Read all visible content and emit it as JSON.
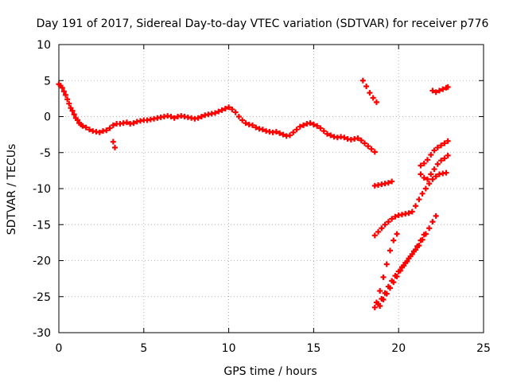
{
  "chart_data": {
    "type": "scatter",
    "title": "Day 191 of 2017, Sidereal Day-to-day VTEC variation (SDTVAR) for receiver p776",
    "xlabel": "GPS time / hours",
    "ylabel": "SDTVAR / TECUs",
    "xlim": [
      0,
      25
    ],
    "ylim": [
      -30,
      10
    ],
    "xticks": [
      0,
      5,
      10,
      15,
      20,
      25
    ],
    "yticks": [
      -30,
      -25,
      -20,
      -15,
      -10,
      -5,
      0,
      5,
      10
    ],
    "grid": true,
    "series_color": "#ff0000",
    "marker": "+",
    "series": [
      {
        "points": [
          [
            0.0,
            4.5
          ],
          [
            0.1,
            4.3
          ],
          [
            0.2,
            4.0
          ],
          [
            0.3,
            3.5
          ],
          [
            0.4,
            3.0
          ],
          [
            0.5,
            2.4
          ],
          [
            0.6,
            1.8
          ],
          [
            0.7,
            1.2
          ],
          [
            0.8,
            0.8
          ],
          [
            0.9,
            0.3
          ],
          [
            1.0,
            -0.2
          ],
          [
            1.1,
            -0.5
          ],
          [
            1.2,
            -0.9
          ],
          [
            1.3,
            -1.1
          ],
          [
            1.4,
            -1.3
          ],
          [
            1.6,
            -1.5
          ],
          [
            1.8,
            -1.8
          ],
          [
            2.0,
            -2.0
          ],
          [
            2.2,
            -2.1
          ],
          [
            2.4,
            -2.2
          ],
          [
            2.6,
            -2.0
          ],
          [
            2.8,
            -1.9
          ],
          [
            3.0,
            -1.6
          ],
          [
            3.2,
            -1.2
          ],
          [
            3.4,
            -1.0
          ],
          [
            3.6,
            -1.0
          ],
          [
            3.8,
            -0.9
          ],
          [
            4.0,
            -0.8
          ],
          [
            4.2,
            -1.0
          ],
          [
            4.4,
            -0.9
          ],
          [
            4.6,
            -0.7
          ],
          [
            4.8,
            -0.6
          ],
          [
            5.0,
            -0.5
          ],
          [
            5.2,
            -0.5
          ],
          [
            5.4,
            -0.4
          ],
          [
            5.6,
            -0.3
          ],
          [
            5.8,
            -0.2
          ],
          [
            6.0,
            -0.1
          ],
          [
            6.2,
            0.0
          ],
          [
            6.4,
            0.1
          ],
          [
            6.6,
            0.0
          ],
          [
            6.8,
            -0.2
          ],
          [
            7.0,
            0.0
          ],
          [
            7.2,
            0.1
          ],
          [
            7.4,
            0.0
          ],
          [
            7.6,
            -0.1
          ],
          [
            7.8,
            -0.2
          ],
          [
            8.0,
            -0.3
          ],
          [
            8.2,
            -0.2
          ],
          [
            8.4,
            0.0
          ],
          [
            8.6,
            0.2
          ],
          [
            8.8,
            0.3
          ],
          [
            9.0,
            0.4
          ],
          [
            9.2,
            0.5
          ],
          [
            9.4,
            0.7
          ],
          [
            9.6,
            0.9
          ],
          [
            9.8,
            1.1
          ],
          [
            10.0,
            1.3
          ],
          [
            10.2,
            1.0
          ],
          [
            10.4,
            0.6
          ],
          [
            10.6,
            0.0
          ],
          [
            10.8,
            -0.5
          ],
          [
            11.0,
            -0.9
          ],
          [
            11.2,
            -1.1
          ],
          [
            11.4,
            -1.2
          ],
          [
            11.6,
            -1.5
          ],
          [
            11.8,
            -1.7
          ],
          [
            12.0,
            -1.8
          ],
          [
            12.2,
            -2.0
          ],
          [
            12.4,
            -2.1
          ],
          [
            12.6,
            -2.2
          ],
          [
            12.8,
            -2.1
          ],
          [
            13.0,
            -2.3
          ],
          [
            13.2,
            -2.5
          ],
          [
            13.4,
            -2.7
          ],
          [
            13.6,
            -2.6
          ],
          [
            13.8,
            -2.2
          ],
          [
            14.0,
            -1.8
          ],
          [
            14.2,
            -1.4
          ],
          [
            14.4,
            -1.2
          ],
          [
            14.6,
            -1.0
          ],
          [
            14.8,
            -0.9
          ],
          [
            15.0,
            -1.1
          ],
          [
            15.2,
            -1.3
          ],
          [
            15.4,
            -1.6
          ],
          [
            15.6,
            -2.0
          ],
          [
            15.8,
            -2.4
          ],
          [
            16.0,
            -2.6
          ],
          [
            16.2,
            -2.8
          ],
          [
            16.4,
            -2.9
          ],
          [
            16.6,
            -2.8
          ],
          [
            16.8,
            -2.9
          ],
          [
            17.0,
            -3.1
          ],
          [
            17.2,
            -3.2
          ],
          [
            17.4,
            -3.1
          ],
          [
            17.6,
            -3.0
          ],
          [
            17.8,
            -3.3
          ],
          [
            18.0,
            -3.7
          ],
          [
            18.2,
            -4.1
          ],
          [
            18.4,
            -4.5
          ],
          [
            18.6,
            -4.9
          ],
          [
            3.2,
            -3.5
          ],
          [
            3.3,
            -4.3
          ],
          [
            17.9,
            5.0
          ],
          [
            18.1,
            4.2
          ],
          [
            18.3,
            3.3
          ],
          [
            18.5,
            2.6
          ],
          [
            18.7,
            2.0
          ],
          [
            18.6,
            -9.6
          ],
          [
            18.8,
            -9.5
          ],
          [
            19.0,
            -9.4
          ],
          [
            19.2,
            -9.3
          ],
          [
            19.4,
            -9.2
          ],
          [
            19.6,
            -9.0
          ],
          [
            18.6,
            -16.5
          ],
          [
            18.8,
            -16.0
          ],
          [
            19.0,
            -15.5
          ],
          [
            19.2,
            -15.0
          ],
          [
            19.4,
            -14.6
          ],
          [
            19.6,
            -14.2
          ],
          [
            19.8,
            -13.9
          ],
          [
            20.0,
            -13.7
          ],
          [
            20.2,
            -13.6
          ],
          [
            20.4,
            -13.5
          ],
          [
            20.6,
            -13.4
          ],
          [
            20.8,
            -13.2
          ],
          [
            21.0,
            -12.4
          ],
          [
            21.2,
            -11.5
          ],
          [
            21.4,
            -10.7
          ],
          [
            21.6,
            -10.0
          ],
          [
            21.8,
            -9.3
          ],
          [
            22.0,
            -8.7
          ],
          [
            22.2,
            -8.3
          ],
          [
            22.4,
            -8.0
          ],
          [
            22.6,
            -7.9
          ],
          [
            22.8,
            -7.8
          ],
          [
            18.6,
            -26.5
          ],
          [
            18.8,
            -26.0
          ],
          [
            19.0,
            -25.3
          ],
          [
            19.2,
            -24.5
          ],
          [
            19.4,
            -23.6
          ],
          [
            19.6,
            -22.8
          ],
          [
            19.8,
            -22.1
          ],
          [
            20.0,
            -21.5
          ],
          [
            20.2,
            -20.9
          ],
          [
            20.4,
            -20.3
          ],
          [
            20.6,
            -19.7
          ],
          [
            20.8,
            -19.1
          ],
          [
            21.0,
            -18.5
          ],
          [
            21.2,
            -17.9
          ],
          [
            21.4,
            -17.1
          ],
          [
            21.6,
            -16.3
          ],
          [
            21.8,
            -15.5
          ],
          [
            22.0,
            -14.6
          ],
          [
            22.2,
            -13.8
          ],
          [
            18.7,
            -25.8
          ],
          [
            18.9,
            -24.2
          ],
          [
            19.1,
            -22.3
          ],
          [
            19.3,
            -20.5
          ],
          [
            19.5,
            -18.6
          ],
          [
            19.7,
            -17.2
          ],
          [
            19.9,
            -16.3
          ],
          [
            18.9,
            -26.3
          ],
          [
            19.1,
            -25.4
          ],
          [
            19.3,
            -24.6
          ],
          [
            19.5,
            -23.8
          ],
          [
            19.7,
            -23.0
          ],
          [
            19.9,
            -22.2
          ],
          [
            20.1,
            -21.4
          ],
          [
            20.3,
            -20.7
          ],
          [
            20.5,
            -20.1
          ],
          [
            20.7,
            -19.4
          ],
          [
            20.9,
            -18.7
          ],
          [
            21.1,
            -18.0
          ],
          [
            21.3,
            -17.2
          ],
          [
            21.5,
            -16.4
          ],
          [
            21.3,
            -8.0
          ],
          [
            21.5,
            -8.5
          ],
          [
            21.7,
            -8.7
          ],
          [
            21.9,
            -8.0
          ],
          [
            22.1,
            -7.3
          ],
          [
            22.3,
            -6.6
          ],
          [
            22.5,
            -6.1
          ],
          [
            22.7,
            -5.8
          ],
          [
            22.9,
            -5.4
          ],
          [
            21.3,
            -6.8
          ],
          [
            21.5,
            -6.5
          ],
          [
            21.7,
            -6.0
          ],
          [
            21.9,
            -5.3
          ],
          [
            22.1,
            -4.7
          ],
          [
            22.3,
            -4.3
          ],
          [
            22.5,
            -4.0
          ],
          [
            22.7,
            -3.7
          ],
          [
            22.9,
            -3.4
          ],
          [
            22.0,
            3.6
          ],
          [
            22.2,
            3.4
          ],
          [
            22.4,
            3.6
          ],
          [
            22.6,
            3.8
          ],
          [
            22.8,
            4.0
          ],
          [
            22.9,
            4.1
          ]
        ]
      }
    ]
  }
}
